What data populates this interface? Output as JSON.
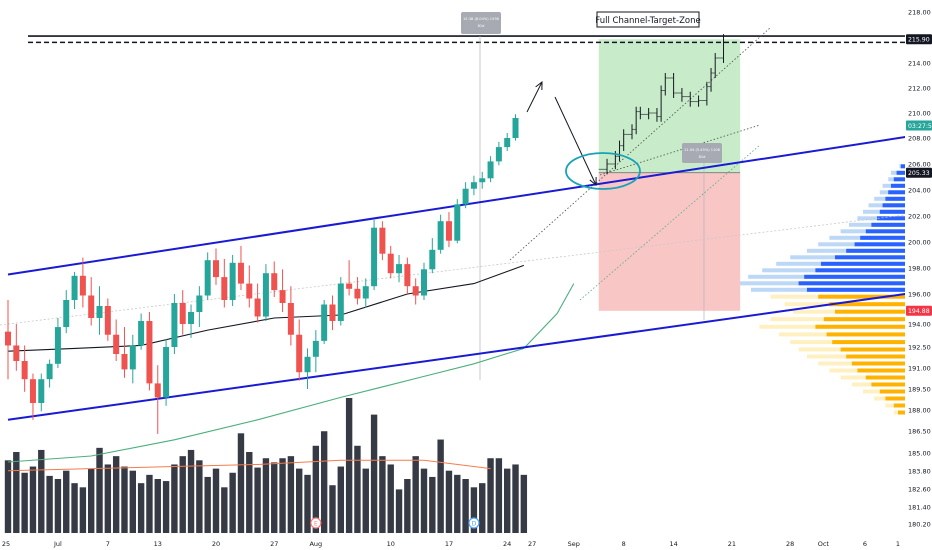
{
  "chart_data": {
    "type": "candlestick",
    "y_axis": {
      "ticks": [
        "218.00",
        "216.00",
        "214.00",
        "212.00",
        "210.00",
        "208.00",
        "206.00",
        "204.00",
        "202.00",
        "200.00",
        "198.00",
        "196.00",
        "194.00",
        "192.50",
        "191.00",
        "189.50",
        "188.00",
        "186.50",
        "185.00",
        "183.80",
        "182.60",
        "181.40",
        "180.20"
      ],
      "ylim": [
        180.2,
        218.0
      ],
      "price_badges": [
        {
          "value": 215.9,
          "label": "215.90",
          "color": "#131722",
          "text_color": "#ffffff"
        },
        {
          "value": 209.0,
          "label": "03:27:55",
          "color": "#26a69a",
          "text_color": "#ffffff"
        },
        {
          "value": 205.33,
          "label": "205.33",
          "color": "#131722",
          "text_color": "#ffffff"
        },
        {
          "value": 194.88,
          "label": "194.88",
          "color": "#f23645",
          "text_color": "#ffffff"
        }
      ]
    },
    "x_axis": {
      "ticks": [
        {
          "label": "25",
          "day": 0
        },
        {
          "label": "Jul",
          "day": 6
        },
        {
          "label": "7",
          "day": 12
        },
        {
          "label": "13",
          "day": 18
        },
        {
          "label": "20",
          "day": 25
        },
        {
          "label": "27",
          "day": 32
        },
        {
          "label": "Aug",
          "day": 37
        },
        {
          "label": "10",
          "day": 46
        },
        {
          "label": "17",
          "day": 53
        },
        {
          "label": "24",
          "day": 60
        },
        {
          "label": "27",
          "day": 63
        },
        {
          "label": "Sep",
          "day": 68
        },
        {
          "label": "8",
          "day": 74
        },
        {
          "label": "14",
          "day": 80
        },
        {
          "label": "21",
          "day": 87
        },
        {
          "label": "28",
          "day": 94
        },
        {
          "label": "Oct",
          "day": 98
        },
        {
          "label": "6",
          "day": 103
        },
        {
          "label": "1",
          "day": 109
        }
      ]
    },
    "candles": [
      {
        "day": 0,
        "o": 193.5,
        "h": 195.6,
        "l": 190.2,
        "c": 192.6
      },
      {
        "day": 1,
        "o": 192.6,
        "h": 194.0,
        "l": 190.8,
        "c": 191.5
      },
      {
        "day": 2,
        "o": 191.5,
        "h": 192.6,
        "l": 189.3,
        "c": 190.2
      },
      {
        "day": 3,
        "o": 190.2,
        "h": 190.6,
        "l": 187.3,
        "c": 188.5
      },
      {
        "day": 4,
        "o": 188.5,
        "h": 190.6,
        "l": 187.9,
        "c": 190.2
      },
      {
        "day": 5,
        "o": 190.2,
        "h": 191.6,
        "l": 189.6,
        "c": 191.3
      },
      {
        "day": 6,
        "o": 191.3,
        "h": 194.4,
        "l": 191.0,
        "c": 193.8
      },
      {
        "day": 7,
        "o": 193.8,
        "h": 196.3,
        "l": 193.4,
        "c": 195.6
      },
      {
        "day": 8,
        "o": 195.6,
        "h": 197.7,
        "l": 195.0,
        "c": 197.4
      },
      {
        "day": 9,
        "o": 197.4,
        "h": 198.8,
        "l": 195.1,
        "c": 195.9
      },
      {
        "day": 10,
        "o": 195.9,
        "h": 197.3,
        "l": 193.9,
        "c": 194.4
      },
      {
        "day": 11,
        "o": 194.4,
        "h": 196.6,
        "l": 193.3,
        "c": 195.2
      },
      {
        "day": 12,
        "o": 195.2,
        "h": 195.7,
        "l": 192.9,
        "c": 193.3
      },
      {
        "day": 13,
        "o": 193.3,
        "h": 194.3,
        "l": 191.5,
        "c": 192.0
      },
      {
        "day": 14,
        "o": 192.0,
        "h": 193.8,
        "l": 190.3,
        "c": 190.9
      },
      {
        "day": 15,
        "o": 190.9,
        "h": 193.3,
        "l": 189.9,
        "c": 192.6
      },
      {
        "day": 16,
        "o": 192.6,
        "h": 194.7,
        "l": 192.3,
        "c": 194.2
      },
      {
        "day": 17,
        "o": 194.2,
        "h": 194.8,
        "l": 189.4,
        "c": 189.9
      },
      {
        "day": 18,
        "o": 189.9,
        "h": 191.2,
        "l": 186.3,
        "c": 188.9
      },
      {
        "day": 19,
        "o": 188.9,
        "h": 193.0,
        "l": 188.3,
        "c": 192.5
      },
      {
        "day": 20,
        "o": 192.5,
        "h": 196.0,
        "l": 192.0,
        "c": 195.4
      },
      {
        "day": 21,
        "o": 195.4,
        "h": 196.3,
        "l": 193.3,
        "c": 194.0
      },
      {
        "day": 22,
        "o": 194.0,
        "h": 195.3,
        "l": 193.1,
        "c": 194.8
      },
      {
        "day": 23,
        "o": 194.8,
        "h": 196.6,
        "l": 193.8,
        "c": 195.9
      },
      {
        "day": 24,
        "o": 195.9,
        "h": 199.2,
        "l": 195.6,
        "c": 198.6
      },
      {
        "day": 25,
        "o": 198.6,
        "h": 199.5,
        "l": 196.7,
        "c": 197.3
      },
      {
        "day": 26,
        "o": 197.3,
        "h": 198.7,
        "l": 195.1,
        "c": 195.6
      },
      {
        "day": 27,
        "o": 195.6,
        "h": 199.0,
        "l": 195.2,
        "c": 198.4
      },
      {
        "day": 28,
        "o": 198.4,
        "h": 199.7,
        "l": 196.3,
        "c": 196.8
      },
      {
        "day": 29,
        "o": 196.8,
        "h": 198.2,
        "l": 195.1,
        "c": 195.7
      },
      {
        "day": 30,
        "o": 195.7,
        "h": 196.8,
        "l": 194.1,
        "c": 194.5
      },
      {
        "day": 31,
        "o": 194.5,
        "h": 198.3,
        "l": 194.2,
        "c": 197.6
      },
      {
        "day": 32,
        "o": 197.6,
        "h": 198.5,
        "l": 195.8,
        "c": 196.3
      },
      {
        "day": 33,
        "o": 196.3,
        "h": 197.9,
        "l": 194.8,
        "c": 195.4
      },
      {
        "day": 34,
        "o": 195.4,
        "h": 196.6,
        "l": 192.6,
        "c": 193.3
      },
      {
        "day": 35,
        "o": 193.3,
        "h": 194.3,
        "l": 190.1,
        "c": 190.7
      },
      {
        "day": 36,
        "o": 190.7,
        "h": 192.4,
        "l": 189.5,
        "c": 191.8
      },
      {
        "day": 37,
        "o": 191.8,
        "h": 193.6,
        "l": 190.7,
        "c": 192.9
      },
      {
        "day": 38,
        "o": 192.9,
        "h": 195.6,
        "l": 192.7,
        "c": 195.3
      },
      {
        "day": 39,
        "o": 195.3,
        "h": 195.9,
        "l": 193.6,
        "c": 194.2
      },
      {
        "day": 40,
        "o": 194.2,
        "h": 197.3,
        "l": 193.9,
        "c": 196.8
      },
      {
        "day": 41,
        "o": 196.8,
        "h": 198.6,
        "l": 195.9,
        "c": 196.4
      },
      {
        "day": 42,
        "o": 196.4,
        "h": 197.3,
        "l": 195.3,
        "c": 195.7
      },
      {
        "day": 43,
        "o": 195.7,
        "h": 197.2,
        "l": 195.1,
        "c": 196.6
      },
      {
        "day": 44,
        "o": 196.6,
        "h": 201.7,
        "l": 196.3,
        "c": 201.1
      },
      {
        "day": 45,
        "o": 201.1,
        "h": 201.6,
        "l": 198.6,
        "c": 199.1
      },
      {
        "day": 46,
        "o": 199.1,
        "h": 199.7,
        "l": 197.2,
        "c": 197.6
      },
      {
        "day": 47,
        "o": 197.6,
        "h": 199.0,
        "l": 196.9,
        "c": 198.3
      },
      {
        "day": 48,
        "o": 198.3,
        "h": 198.8,
        "l": 196.0,
        "c": 196.6
      },
      {
        "day": 49,
        "o": 196.6,
        "h": 197.2,
        "l": 195.3,
        "c": 195.9
      },
      {
        "day": 50,
        "o": 195.9,
        "h": 198.4,
        "l": 195.6,
        "c": 197.9
      },
      {
        "day": 51,
        "o": 197.9,
        "h": 200.3,
        "l": 197.6,
        "c": 199.4
      },
      {
        "day": 52,
        "o": 199.4,
        "h": 202.1,
        "l": 199.1,
        "c": 201.6
      },
      {
        "day": 53,
        "o": 201.6,
        "h": 202.3,
        "l": 199.6,
        "c": 200.1
      },
      {
        "day": 54,
        "o": 200.1,
        "h": 203.3,
        "l": 199.9,
        "c": 202.9
      },
      {
        "day": 55,
        "o": 202.9,
        "h": 204.6,
        "l": 202.6,
        "c": 204.1
      },
      {
        "day": 56,
        "o": 204.1,
        "h": 205.1,
        "l": 203.6,
        "c": 204.6
      },
      {
        "day": 57,
        "o": 204.6,
        "h": 205.4,
        "l": 204.1,
        "c": 204.9
      },
      {
        "day": 58,
        "o": 204.9,
        "h": 206.6,
        "l": 204.6,
        "c": 206.2
      },
      {
        "day": 59,
        "o": 206.2,
        "h": 207.7,
        "l": 205.9,
        "c": 207.3
      },
      {
        "day": 60,
        "o": 207.3,
        "h": 208.4,
        "l": 207.0,
        "c": 208.0
      },
      {
        "day": 61,
        "o": 208.0,
        "h": 209.9,
        "l": 207.8,
        "c": 209.6
      }
    ],
    "moving_averages": [
      {
        "name": "",
        "color": "#131722",
        "points": [
          [
            0,
            192.2
          ],
          [
            8,
            192.4
          ],
          [
            16,
            192.6
          ],
          [
            24,
            193.6
          ],
          [
            32,
            194.4
          ],
          [
            40,
            194.6
          ],
          [
            48,
            196.0
          ],
          [
            56,
            196.8
          ],
          [
            62,
            198.2
          ]
        ]
      },
      {
        "name": "",
        "color": "#4caf7d",
        "points": [
          [
            0,
            184.4
          ],
          [
            10,
            184.8
          ],
          [
            20,
            185.9
          ],
          [
            30,
            187.3
          ],
          [
            40,
            188.9
          ],
          [
            50,
            190.4
          ],
          [
            56,
            191.3
          ],
          [
            62,
            192.4
          ],
          [
            66,
            194.7
          ],
          [
            68,
            196.8
          ]
        ]
      }
    ],
    "channel_lines": [
      {
        "color": "#1a1ad4",
        "from": [
          0,
          197.5
        ],
        "to": [
          110,
          208.3
        ]
      },
      {
        "color": "#1a1ad4",
        "from": [
          0,
          187.3
        ],
        "to": [
          110,
          196.2
        ]
      }
    ],
    "target_zone": {
      "label": "Full Channel-Target-Zone",
      "day_start": 71,
      "day_end": 88,
      "entry": 205.33,
      "target": 215.9,
      "stop": 194.88,
      "profit_color": "#c8ecc9",
      "loss_color": "#f9c6c6"
    },
    "horizontal_lines": [
      {
        "value": 216.15,
        "style": "solid"
      },
      {
        "value": 215.65,
        "style": "dashed"
      }
    ],
    "forecast_path": [
      [
        71,
        205.6
      ],
      [
        72,
        206.0
      ],
      [
        73,
        206.6
      ],
      [
        73.5,
        207.4
      ],
      [
        74,
        208.3
      ],
      [
        75,
        208.7
      ],
      [
        75.5,
        210.1
      ],
      [
        76,
        209.9
      ],
      [
        77,
        210.0
      ],
      [
        78,
        209.7
      ],
      [
        78.5,
        211.8
      ],
      [
        79,
        212.8
      ],
      [
        80,
        211.6
      ],
      [
        81,
        211.3
      ],
      [
        82,
        210.9
      ],
      [
        83,
        211.0
      ],
      [
        84,
        212.1
      ],
      [
        84.5,
        213.2
      ],
      [
        85,
        214.4
      ],
      [
        86,
        215.9
      ]
    ],
    "info_boxes": [
      {
        "line1": "15.38 (8.04%) 1536",
        "line2": "81d"
      },
      {
        "line1": "11.04 (5.45%) 1106",
        "line2": "81d"
      }
    ],
    "volume": {
      "ylim": [
        0,
        130
      ],
      "values": [
        70,
        78,
        58,
        64,
        80,
        55,
        52,
        60,
        48,
        44,
        62,
        82,
        66,
        74,
        64,
        60,
        48,
        56,
        52,
        50,
        66,
        74,
        80,
        70,
        54,
        62,
        44,
        58,
        96,
        78,
        63,
        72,
        68,
        72,
        74,
        62,
        56,
        84,
        98,
        46,
        64,
        130,
        84,
        62,
        114,
        74,
        66,
        42,
        52,
        74,
        62,
        54,
        90,
        60,
        56,
        52,
        44,
        48,
        72,
        72,
        62,
        66,
        56,
        60,
        68,
        46,
        42,
        64,
        64,
        56,
        50,
        52,
        48,
        43,
        58,
        50
      ],
      "ma_points": [
        [
          0,
          60
        ],
        [
          10,
          62
        ],
        [
          20,
          64
        ],
        [
          30,
          66
        ],
        [
          40,
          70
        ],
        [
          50,
          70
        ],
        [
          58,
          62
        ],
        [
          66,
          58
        ],
        [
          74,
          52
        ]
      ],
      "bar_color": "#363a45",
      "ma_color": "#f57c4f",
      "event_markers": [
        {
          "label": "E",
          "day": 37,
          "color": "#f57c7c"
        },
        {
          "label": "D",
          "day": 56,
          "color": "#4fa3f7"
        }
      ]
    },
    "volume_profile": {
      "bins": [
        {
          "p": 205.8,
          "a": 4,
          "b": 3
        },
        {
          "p": 205.3,
          "a": 10,
          "b": 6
        },
        {
          "p": 204.8,
          "a": 12,
          "b": 8
        },
        {
          "p": 204.3,
          "a": 16,
          "b": 10
        },
        {
          "p": 203.8,
          "a": 18,
          "b": 12
        },
        {
          "p": 203.3,
          "a": 22,
          "b": 14
        },
        {
          "p": 202.8,
          "a": 26,
          "b": 16
        },
        {
          "p": 202.3,
          "a": 30,
          "b": 18
        },
        {
          "p": 201.8,
          "a": 34,
          "b": 20
        },
        {
          "p": 201.3,
          "a": 40,
          "b": 24
        },
        {
          "p": 200.8,
          "a": 46,
          "b": 28
        },
        {
          "p": 200.3,
          "a": 54,
          "b": 32
        },
        {
          "p": 199.8,
          "a": 62,
          "b": 36
        },
        {
          "p": 199.3,
          "a": 70,
          "b": 42
        },
        {
          "p": 198.8,
          "a": 82,
          "b": 50
        },
        {
          "p": 198.3,
          "a": 92,
          "b": 60
        },
        {
          "p": 197.8,
          "a": 102,
          "b": 64
        },
        {
          "p": 197.3,
          "a": 112,
          "b": 72
        },
        {
          "p": 196.8,
          "a": 118,
          "b": 76
        },
        {
          "p": 196.3,
          "a": 110,
          "b": 70
        },
        {
          "p": 195.8,
          "a": 96,
          "b": 62
        },
        {
          "p": 195.3,
          "a": 86,
          "b": 54
        },
        {
          "p": 194.8,
          "a": 80,
          "b": 50
        },
        {
          "p": 194.3,
          "a": 96,
          "b": 58
        },
        {
          "p": 193.8,
          "a": 104,
          "b": 64
        },
        {
          "p": 193.3,
          "a": 90,
          "b": 56
        },
        {
          "p": 192.8,
          "a": 82,
          "b": 52
        },
        {
          "p": 192.3,
          "a": 76,
          "b": 46
        },
        {
          "p": 191.8,
          "a": 70,
          "b": 42
        },
        {
          "p": 191.3,
          "a": 62,
          "b": 38
        },
        {
          "p": 190.8,
          "a": 54,
          "b": 34
        },
        {
          "p": 190.3,
          "a": 46,
          "b": 28
        },
        {
          "p": 189.8,
          "a": 38,
          "b": 24
        },
        {
          "p": 189.3,
          "a": 30,
          "b": 18
        },
        {
          "p": 188.8,
          "a": 22,
          "b": 14
        },
        {
          "p": 188.3,
          "a": 14,
          "b": 8
        },
        {
          "p": 187.8,
          "a": 8,
          "b": 5
        }
      ],
      "colors": {
        "upper_light": "#bcd8f6",
        "upper_dark": "#2962ff",
        "lower_light": "#fff0c2",
        "lower_dark": "#ffb300"
      }
    },
    "annotations": [
      {
        "type": "arrow",
        "from": [
          62,
          212.0
        ],
        "to": [
          63.5,
          210.2
        ]
      },
      {
        "type": "arrow",
        "from": [
          65,
          210.3
        ],
        "to": [
          70,
          205.7
        ]
      },
      {
        "type": "ellipse",
        "center": [
          70.5,
          205.3
        ],
        "rx_days": 3.5,
        "ry_price": 1.4,
        "color": "#17a2b8"
      }
    ],
    "grid": false
  }
}
